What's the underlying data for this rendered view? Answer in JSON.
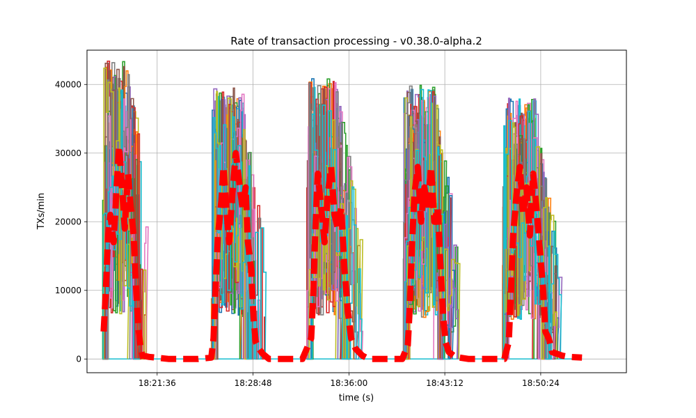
{
  "chart_data": {
    "type": "line",
    "title": "Rate of transaction processing  -  v0.38.0-alpha.2",
    "xlabel": "time (s)",
    "ylabel": "TXs/min",
    "x_ticks": [
      "18:21:36",
      "18:28:48",
      "18:36:00",
      "18:43:12",
      "18:50:24"
    ],
    "x_range": [
      "18:16:20",
      "18:56:50"
    ],
    "y_ticks": [
      0,
      10000,
      20000,
      30000,
      40000
    ],
    "ylim": [
      -2000,
      45000
    ],
    "grid": true,
    "legend": "none",
    "series_colors": [
      "#1f77b4",
      "#ff7f0e",
      "#2ca02c",
      "#d62728",
      "#9467bd",
      "#8c564b",
      "#e377c2",
      "#7f7f7f",
      "#bcbd22",
      "#17becf"
    ],
    "aggregate": {
      "color": "#ff0000",
      "style": "dashed",
      "points": [
        [
          "18:17:35",
          4000
        ],
        [
          "18:17:45",
          10000
        ],
        [
          "18:17:55",
          18000
        ],
        [
          "18:18:05",
          21000
        ],
        [
          "18:18:20",
          17000
        ],
        [
          "18:18:35",
          26000
        ],
        [
          "18:18:45",
          31000
        ],
        [
          "18:19:00",
          24000
        ],
        [
          "18:19:10",
          19000
        ],
        [
          "18:19:25",
          27000
        ],
        [
          "18:19:35",
          23000
        ],
        [
          "18:19:50",
          18000
        ],
        [
          "18:20:00",
          11000
        ],
        [
          "18:20:10",
          5000
        ],
        [
          "18:20:20",
          2000
        ],
        [
          "18:20:30",
          500
        ],
        [
          "18:21:00",
          300
        ],
        [
          "18:22:30",
          0
        ],
        [
          "18:24:40",
          0
        ],
        [
          "18:25:40",
          200
        ],
        [
          "18:25:50",
          3000
        ],
        [
          "18:26:00",
          11000
        ],
        [
          "18:26:10",
          18000
        ],
        [
          "18:26:25",
          23000
        ],
        [
          "18:26:35",
          28000
        ],
        [
          "18:26:50",
          21000
        ],
        [
          "18:27:00",
          17000
        ],
        [
          "18:27:15",
          24000
        ],
        [
          "18:27:30",
          30000
        ],
        [
          "18:27:45",
          26000
        ],
        [
          "18:28:00",
          22000
        ],
        [
          "18:28:15",
          25000
        ],
        [
          "18:28:25",
          17000
        ],
        [
          "18:28:40",
          13000
        ],
        [
          "18:28:50",
          6000
        ],
        [
          "18:29:00",
          2500
        ],
        [
          "18:29:15",
          1500
        ],
        [
          "18:29:30",
          800
        ],
        [
          "18:30:00",
          0
        ],
        [
          "18:32:30",
          0
        ],
        [
          "18:33:10",
          3000
        ],
        [
          "18:33:20",
          10000
        ],
        [
          "18:33:30",
          20000
        ],
        [
          "18:33:40",
          27000
        ],
        [
          "18:33:55",
          22000
        ],
        [
          "18:34:10",
          17000
        ],
        [
          "18:34:25",
          24000
        ],
        [
          "18:34:40",
          28000
        ],
        [
          "18:34:55",
          21000
        ],
        [
          "18:35:10",
          19000
        ],
        [
          "18:35:25",
          22000
        ],
        [
          "18:35:40",
          13000
        ],
        [
          "18:35:55",
          7000
        ],
        [
          "18:36:10",
          3000
        ],
        [
          "18:36:30",
          1500
        ],
        [
          "18:37:00",
          500
        ],
        [
          "18:37:30",
          0
        ],
        [
          "18:40:00",
          0
        ],
        [
          "18:40:25",
          2000
        ],
        [
          "18:40:35",
          8000
        ],
        [
          "18:40:45",
          17000
        ],
        [
          "18:40:55",
          24000
        ],
        [
          "18:41:10",
          28000
        ],
        [
          "18:41:25",
          20000
        ],
        [
          "18:41:40",
          25000
        ],
        [
          "18:41:55",
          22000
        ],
        [
          "18:42:10",
          28000
        ],
        [
          "18:42:25",
          20000
        ],
        [
          "18:42:40",
          22000
        ],
        [
          "18:42:55",
          12000
        ],
        [
          "18:43:05",
          6000
        ],
        [
          "18:43:15",
          2500
        ],
        [
          "18:43:30",
          1000
        ],
        [
          "18:44:00",
          300
        ],
        [
          "18:45:00",
          0
        ],
        [
          "18:47:40",
          0
        ],
        [
          "18:48:00",
          2500
        ],
        [
          "18:48:10",
          10000
        ],
        [
          "18:48:20",
          18000
        ],
        [
          "18:48:35",
          24000
        ],
        [
          "18:48:50",
          28000
        ],
        [
          "18:49:05",
          21000
        ],
        [
          "18:49:20",
          25000
        ],
        [
          "18:49:35",
          18000
        ],
        [
          "18:49:50",
          27000
        ],
        [
          "18:50:05",
          22000
        ],
        [
          "18:50:20",
          16000
        ],
        [
          "18:50:35",
          10000
        ],
        [
          "18:50:45",
          4000
        ],
        [
          "18:51:00",
          3000
        ],
        [
          "18:51:15",
          1000
        ],
        [
          "18:52:00",
          500
        ],
        [
          "18:52:30",
          300
        ],
        [
          "18:53:30",
          200
        ]
      ]
    },
    "bursts": [
      {
        "start": "18:17:30",
        "end": "18:21:10",
        "max": 43500
      },
      {
        "start": "18:25:40",
        "end": "18:29:45",
        "max": 39500
      },
      {
        "start": "18:32:50",
        "end": "18:37:00",
        "max": 41000
      },
      {
        "start": "18:40:05",
        "end": "18:44:20",
        "max": 40000
      },
      {
        "start": "18:47:30",
        "end": "18:51:55",
        "max": 38000
      }
    ]
  }
}
